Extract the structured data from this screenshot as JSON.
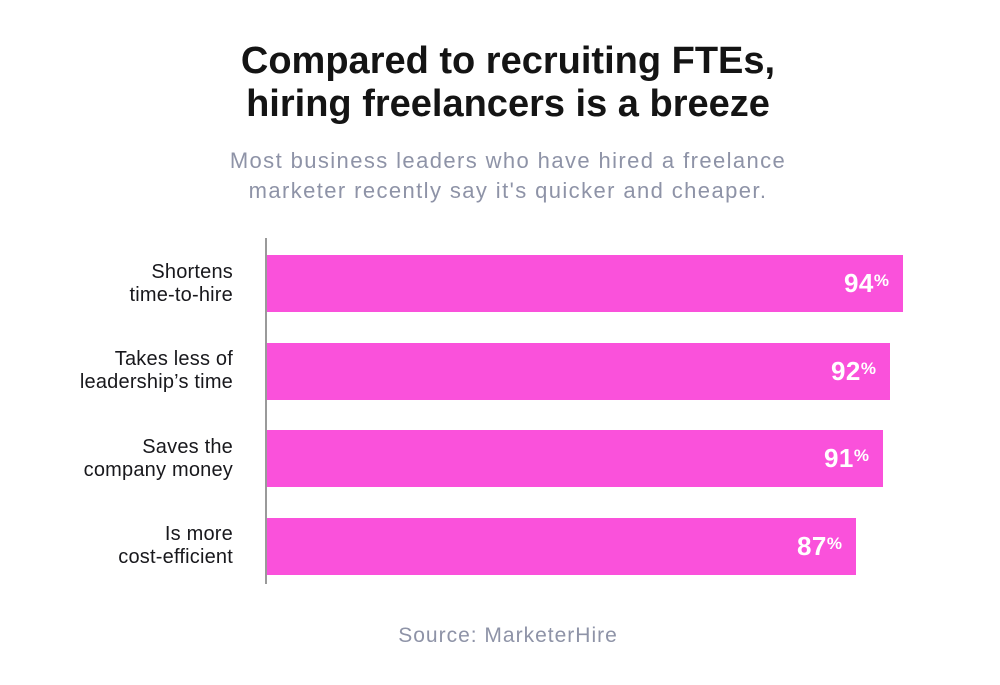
{
  "title": {
    "line1": "Compared to recruiting FTEs,",
    "line2": "hiring freelancers is a breeze"
  },
  "subtitle": {
    "line1": "Most business leaders who have hired a freelance",
    "line2": "marketer recently say it's quicker and cheaper."
  },
  "source": "Source: MarketerHire",
  "colors": {
    "bar": "#FA51DB",
    "title": "#141414",
    "subtitle": "#8E93A7",
    "axis": "#9A9A9A",
    "value_text": "#FFFFFF",
    "label": "#18181C"
  },
  "chart_data": {
    "type": "bar",
    "orientation": "horizontal",
    "title": "Compared to recruiting FTEs, hiring freelancers is a breeze",
    "subtitle": "Most business leaders who have hired a freelance marketer recently say it's quicker and cheaper.",
    "categories": [
      [
        "Shortens",
        "time-to-hire"
      ],
      [
        "Takes less of",
        "leadership’s time"
      ],
      [
        "Saves the",
        "company money"
      ],
      [
        "Is more",
        "cost-efficient"
      ]
    ],
    "values": [
      94,
      92,
      91,
      87
    ],
    "unit": "%",
    "xlim": [
      0,
      100
    ],
    "grid": false,
    "legend": false,
    "source": "Source: MarketerHire"
  }
}
